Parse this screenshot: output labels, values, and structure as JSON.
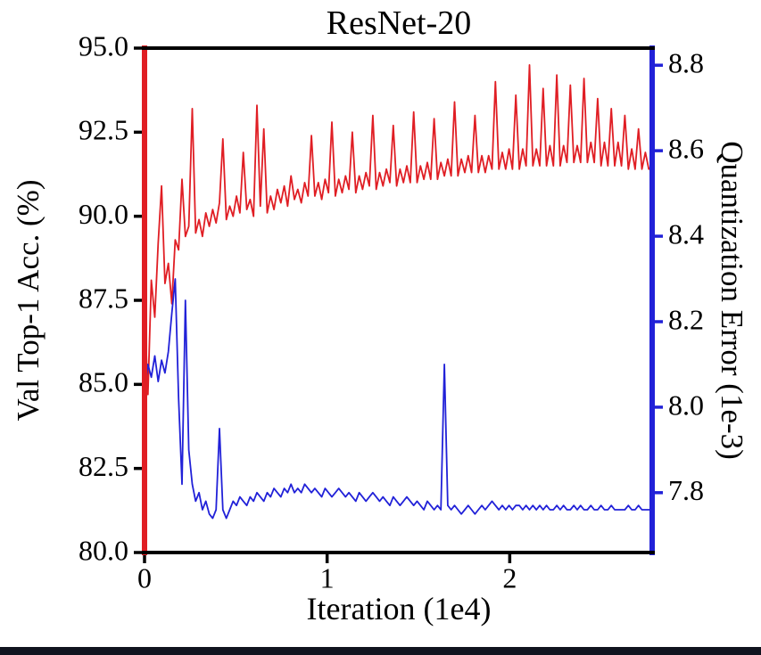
{
  "page": {
    "background": "#ffffff",
    "bottom_bar_color": "#10141f"
  },
  "chart_data": {
    "type": "line",
    "title": "ResNet-20",
    "xlabel": "Iteration (1e4)",
    "ylabel_left": "Val Top-1 Acc. (%)",
    "ylabel_right": "Quantization Error (1e-3)",
    "grid": false,
    "legend": "none",
    "xlim": [
      0,
      2.78
    ],
    "xticks": [
      {
        "v": 0,
        "label": "0"
      },
      {
        "v": 1,
        "label": "1"
      },
      {
        "v": 2,
        "label": "2"
      }
    ],
    "left_axis": {
      "lim": [
        80.0,
        95.0
      ],
      "ticks": [
        {
          "v": 80.0,
          "label": "80.0"
        },
        {
          "v": 82.5,
          "label": "82.5"
        },
        {
          "v": 85.0,
          "label": "85.0"
        },
        {
          "v": 87.5,
          "label": "87.5"
        },
        {
          "v": 90.0,
          "label": "90.0"
        },
        {
          "v": 92.5,
          "label": "92.5"
        },
        {
          "v": 95.0,
          "label": "95.0"
        }
      ]
    },
    "right_axis": {
      "lim": [
        7.66,
        8.84
      ],
      "ticks": [
        {
          "v": 7.8,
          "label": "7.8"
        },
        {
          "v": 8.0,
          "label": "8.0"
        },
        {
          "v": 8.2,
          "label": "8.2"
        },
        {
          "v": 8.4,
          "label": "8.4"
        },
        {
          "v": 8.6,
          "label": "8.6"
        },
        {
          "v": 8.8,
          "label": "8.8"
        }
      ]
    },
    "colors": {
      "left_spine": "#e01e24",
      "right_spine": "#2121d8",
      "frame": "#000000",
      "accuracy_line": "#e01e24",
      "error_line": "#2121d8"
    },
    "series": [
      {
        "name": "val-top1-accuracy",
        "axis": "left",
        "color": "#e01e24",
        "values": [
          87.3,
          84.7,
          88.1,
          87.0,
          89.2,
          90.9,
          88.0,
          88.6,
          87.4,
          89.3,
          89.0,
          91.1,
          89.4,
          89.7,
          93.2,
          89.5,
          89.9,
          89.4,
          90.1,
          89.7,
          90.2,
          89.8,
          90.4,
          92.3,
          89.9,
          90.3,
          90.0,
          90.6,
          90.1,
          91.9,
          90.2,
          90.5,
          90.0,
          93.3,
          90.3,
          92.6,
          90.1,
          90.6,
          90.2,
          90.8,
          90.4,
          90.9,
          90.3,
          91.2,
          90.5,
          90.8,
          90.4,
          91.0,
          90.6,
          92.4,
          90.6,
          91.0,
          90.5,
          91.1,
          90.7,
          92.8,
          90.6,
          91.1,
          90.7,
          91.2,
          90.8,
          92.5,
          90.7,
          91.2,
          90.8,
          91.3,
          90.9,
          93.0,
          90.8,
          91.3,
          90.9,
          91.4,
          91.0,
          92.7,
          90.9,
          91.4,
          91.0,
          91.5,
          91.0,
          93.1,
          91.0,
          91.5,
          91.1,
          91.6,
          91.1,
          92.9,
          91.1,
          91.6,
          91.2,
          91.7,
          91.2,
          93.4,
          91.2,
          91.7,
          91.3,
          91.8,
          91.3,
          93.0,
          91.3,
          91.8,
          91.3,
          91.8,
          91.4,
          94.0,
          91.4,
          91.9,
          91.4,
          92.0,
          91.4,
          93.6,
          91.4,
          92.0,
          91.5,
          94.5,
          91.5,
          92.0,
          91.5,
          93.8,
          91.5,
          92.1,
          91.5,
          94.2,
          91.5,
          92.1,
          91.6,
          93.9,
          91.6,
          92.1,
          91.6,
          94.1,
          91.6,
          92.2,
          91.6,
          93.5,
          91.5,
          92.2,
          91.5,
          93.2,
          91.5,
          92.2,
          91.5,
          93.0,
          91.4,
          92.0,
          91.4,
          92.6,
          91.4,
          91.9,
          91.4,
          91.5
        ]
      },
      {
        "name": "quantization-error",
        "axis": "right",
        "color": "#2121d8",
        "values": [
          8.04,
          8.1,
          8.07,
          8.12,
          8.06,
          8.11,
          8.08,
          8.13,
          8.22,
          8.3,
          8.02,
          7.82,
          8.25,
          7.9,
          7.82,
          7.78,
          7.8,
          7.76,
          7.78,
          7.75,
          7.74,
          7.76,
          7.95,
          7.76,
          7.74,
          7.76,
          7.78,
          7.77,
          7.79,
          7.78,
          7.77,
          7.79,
          7.78,
          7.8,
          7.79,
          7.78,
          7.8,
          7.79,
          7.81,
          7.8,
          7.79,
          7.81,
          7.8,
          7.82,
          7.8,
          7.81,
          7.8,
          7.82,
          7.81,
          7.8,
          7.81,
          7.8,
          7.79,
          7.81,
          7.8,
          7.79,
          7.8,
          7.81,
          7.8,
          7.79,
          7.8,
          7.79,
          7.78,
          7.8,
          7.79,
          7.78,
          7.79,
          7.8,
          7.79,
          7.78,
          7.79,
          7.78,
          7.77,
          7.79,
          7.78,
          7.77,
          7.78,
          7.79,
          7.78,
          7.77,
          7.78,
          7.77,
          7.76,
          7.78,
          7.77,
          7.76,
          7.77,
          7.76,
          8.1,
          7.77,
          7.76,
          7.77,
          7.76,
          7.75,
          7.76,
          7.77,
          7.76,
          7.75,
          7.76,
          7.77,
          7.76,
          7.77,
          7.78,
          7.77,
          7.76,
          7.77,
          7.76,
          7.77,
          7.76,
          7.77,
          7.77,
          7.76,
          7.77,
          7.76,
          7.77,
          7.76,
          7.77,
          7.76,
          7.77,
          7.76,
          7.76,
          7.77,
          7.76,
          7.77,
          7.76,
          7.76,
          7.77,
          7.76,
          7.77,
          7.76,
          7.76,
          7.77,
          7.76,
          7.76,
          7.77,
          7.76,
          7.76,
          7.77,
          7.76,
          7.76,
          7.76,
          7.76,
          7.77,
          7.76,
          7.76,
          7.77,
          7.76,
          7.76,
          7.76,
          7.76
        ]
      }
    ]
  }
}
